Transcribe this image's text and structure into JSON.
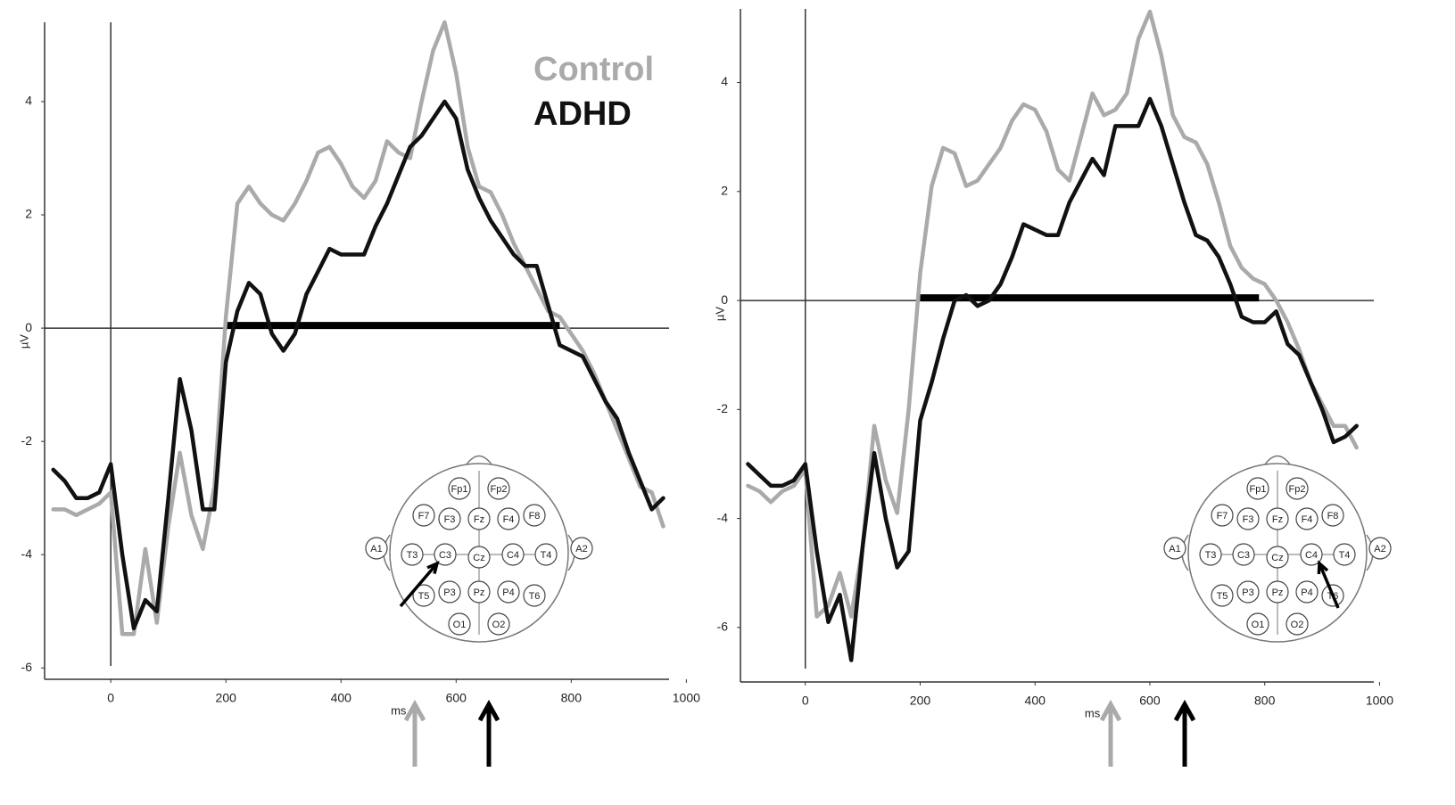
{
  "chart_data": [
    {
      "type": "line",
      "x_label": "ms",
      "y_label": "µV",
      "x": [
        -100,
        -80,
        -60,
        -40,
        -20,
        0,
        20,
        40,
        60,
        80,
        100,
        120,
        140,
        160,
        180,
        200,
        220,
        240,
        260,
        280,
        300,
        320,
        340,
        360,
        380,
        400,
        420,
        440,
        460,
        480,
        500,
        520,
        540,
        560,
        580,
        600,
        620,
        640,
        660,
        680,
        700,
        720,
        740,
        760,
        780,
        800,
        820,
        840,
        860,
        880,
        900,
        920,
        940,
        960
      ],
      "series": [
        {
          "name": "Control",
          "color": "#aaaaaa",
          "values": [
            -3.2,
            -3.2,
            -3.3,
            -3.2,
            -3.1,
            -2.9,
            -5.4,
            -5.4,
            -3.9,
            -5.2,
            -3.5,
            -2.2,
            -3.3,
            -3.9,
            -2.8,
            0.2,
            2.2,
            2.5,
            2.2,
            2.0,
            1.9,
            2.2,
            2.6,
            3.1,
            3.2,
            2.9,
            2.5,
            2.3,
            2.6,
            3.3,
            3.1,
            3.0,
            4.0,
            4.9,
            5.4,
            4.5,
            3.2,
            2.5,
            2.4,
            2.0,
            1.5,
            1.1,
            0.7,
            0.3,
            0.2,
            -0.1,
            -0.4,
            -0.8,
            -1.3,
            -1.8,
            -2.3,
            -2.8,
            -2.9,
            -3.5
          ]
        },
        {
          "name": "ADHD",
          "color": "#111111",
          "values": [
            -2.5,
            -2.7,
            -3.0,
            -3.0,
            -2.9,
            -2.4,
            -4.0,
            -5.3,
            -4.8,
            -5.0,
            -3.0,
            -0.9,
            -1.8,
            -3.2,
            -3.2,
            -0.6,
            0.3,
            0.8,
            0.6,
            -0.1,
            -0.4,
            -0.1,
            0.6,
            1.0,
            1.4,
            1.3,
            1.3,
            1.3,
            1.8,
            2.2,
            2.7,
            3.2,
            3.4,
            3.7,
            4.0,
            3.7,
            2.8,
            2.3,
            1.9,
            1.6,
            1.3,
            1.1,
            1.1,
            0.4,
            -0.3,
            -0.4,
            -0.5,
            -0.9,
            -1.3,
            -1.6,
            -2.2,
            -2.7,
            -3.2,
            -3.0
          ]
        }
      ],
      "xlim": [
        -115,
        970
      ],
      "ylim": [
        -6.2,
        5.4
      ],
      "xticks": [
        0,
        200,
        400,
        600,
        800,
        1000
      ],
      "yticks": [
        -6,
        -4,
        -2,
        0,
        2,
        4
      ],
      "significance_window": [
        200,
        780
      ],
      "legend": true
    },
    {
      "type": "line",
      "x_label": "ms",
      "y_label": "µV",
      "x": [
        -100,
        -80,
        -60,
        -40,
        -20,
        0,
        20,
        40,
        60,
        80,
        100,
        120,
        140,
        160,
        180,
        200,
        220,
        240,
        260,
        280,
        300,
        320,
        340,
        360,
        380,
        400,
        420,
        440,
        460,
        480,
        500,
        520,
        540,
        560,
        580,
        600,
        620,
        640,
        660,
        680,
        700,
        720,
        740,
        760,
        780,
        800,
        820,
        840,
        860,
        880,
        900,
        920,
        940,
        960
      ],
      "series": [
        {
          "name": "Control",
          "color": "#aaaaaa",
          "values": [
            -3.4,
            -3.5,
            -3.7,
            -3.5,
            -3.4,
            -3.1,
            -5.8,
            -5.6,
            -5.0,
            -5.8,
            -4.5,
            -2.3,
            -3.3,
            -3.9,
            -2.0,
            0.5,
            2.1,
            2.8,
            2.7,
            2.1,
            2.2,
            2.5,
            2.8,
            3.3,
            3.6,
            3.5,
            3.1,
            2.4,
            2.2,
            3.0,
            3.8,
            3.4,
            3.5,
            3.8,
            4.8,
            5.3,
            4.5,
            3.4,
            3.0,
            2.9,
            2.5,
            1.8,
            1.0,
            0.6,
            0.4,
            0.3,
            0.0,
            -0.4,
            -0.9,
            -1.5,
            -1.9,
            -2.3,
            -2.3,
            -2.7
          ]
        },
        {
          "name": "ADHD",
          "color": "#111111",
          "values": [
            -3.0,
            -3.2,
            -3.4,
            -3.4,
            -3.3,
            -3.0,
            -4.6,
            -5.9,
            -5.4,
            -6.6,
            -4.5,
            -2.8,
            -4.0,
            -4.9,
            -4.6,
            -2.2,
            -1.5,
            -0.7,
            0.0,
            0.1,
            -0.1,
            0.0,
            0.3,
            0.8,
            1.4,
            1.3,
            1.2,
            1.2,
            1.8,
            2.2,
            2.6,
            2.3,
            3.2,
            3.2,
            3.2,
            3.7,
            3.2,
            2.5,
            1.8,
            1.2,
            1.1,
            0.8,
            0.3,
            -0.3,
            -0.4,
            -0.4,
            -0.2,
            -0.8,
            -1.0,
            -1.5,
            -2.0,
            -2.6,
            -2.5,
            -2.3
          ]
        }
      ],
      "xlim": [
        -113,
        990
      ],
      "ylim": [
        -7.0,
        5.35
      ],
      "xticks": [
        0,
        200,
        400,
        600,
        800,
        1000
      ],
      "yticks": [
        -6,
        -4,
        -2,
        0,
        2,
        4
      ],
      "significance_window": [
        200,
        790
      ],
      "legend": false
    }
  ],
  "electrode_map": {
    "labels": [
      "Fp1",
      "Fp2",
      "F7",
      "F3",
      "Fz",
      "F4",
      "F8",
      "A1",
      "T3",
      "C3",
      "Cz",
      "C4",
      "T4",
      "A2",
      "T5",
      "P3",
      "Pz",
      "P4",
      "T6",
      "O1",
      "O2"
    ]
  }
}
